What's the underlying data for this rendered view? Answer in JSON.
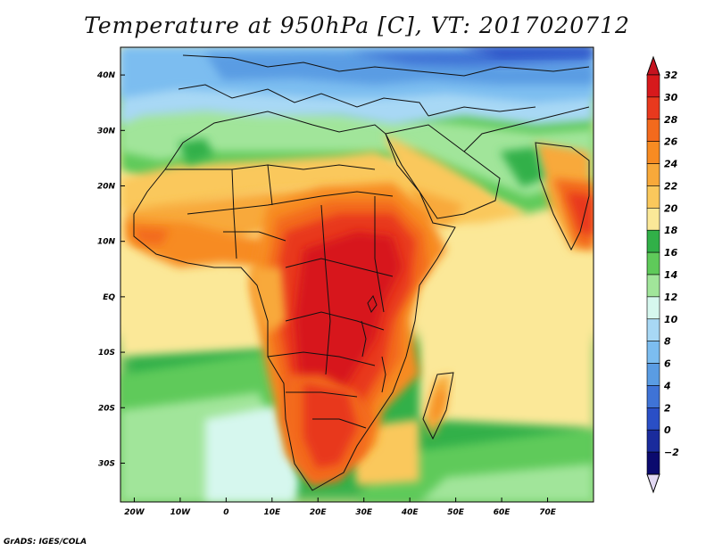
{
  "title": "Temperature at 950hPa [C], VT: 2017020712",
  "footer": "GrADS: IGES/COLA",
  "map": {
    "lon_range": [
      -23,
      80
    ],
    "lat_range": [
      -37,
      45
    ],
    "lon_tick_values": [
      -20,
      -10,
      0,
      10,
      20,
      30,
      40,
      50,
      60,
      70
    ],
    "lon_tick_labels": [
      "20W",
      "10W",
      "0",
      "10E",
      "20E",
      "30E",
      "40E",
      "50E",
      "60E",
      "70E"
    ],
    "lat_tick_values": [
      40,
      30,
      20,
      10,
      0,
      -10,
      -20,
      -30
    ],
    "lat_tick_labels": [
      "40N",
      "30N",
      "20N",
      "10N",
      "EQ",
      "10S",
      "20S",
      "30S"
    ]
  },
  "colorbar": {
    "levels": [
      32,
      30,
      28,
      26,
      24,
      22,
      20,
      18,
      16,
      14,
      12,
      10,
      8,
      6,
      4,
      2,
      0,
      -2
    ],
    "labels": [
      "32",
      "30",
      "28",
      "26",
      "24",
      "22",
      "20",
      "18",
      "16",
      "14",
      "12",
      "10",
      "8",
      "6",
      "4",
      "2",
      "0",
      "−2"
    ],
    "colors_top_to_bottom": [
      "#d7191c",
      "#e8391e",
      "#f36a1d",
      "#f78b22",
      "#f8a93a",
      "#fac85c",
      "#fbe898",
      "#31b048",
      "#5fca5a",
      "#a1e59a",
      "#d6f7ee",
      "#a8d8f5",
      "#7cbdf0",
      "#5a9ce3",
      "#3f73d6",
      "#2a4fc6",
      "#1a2b9c",
      "#0b0a6e"
    ],
    "under_color": "#e2d8f3",
    "over_color": "#c5131f"
  }
}
